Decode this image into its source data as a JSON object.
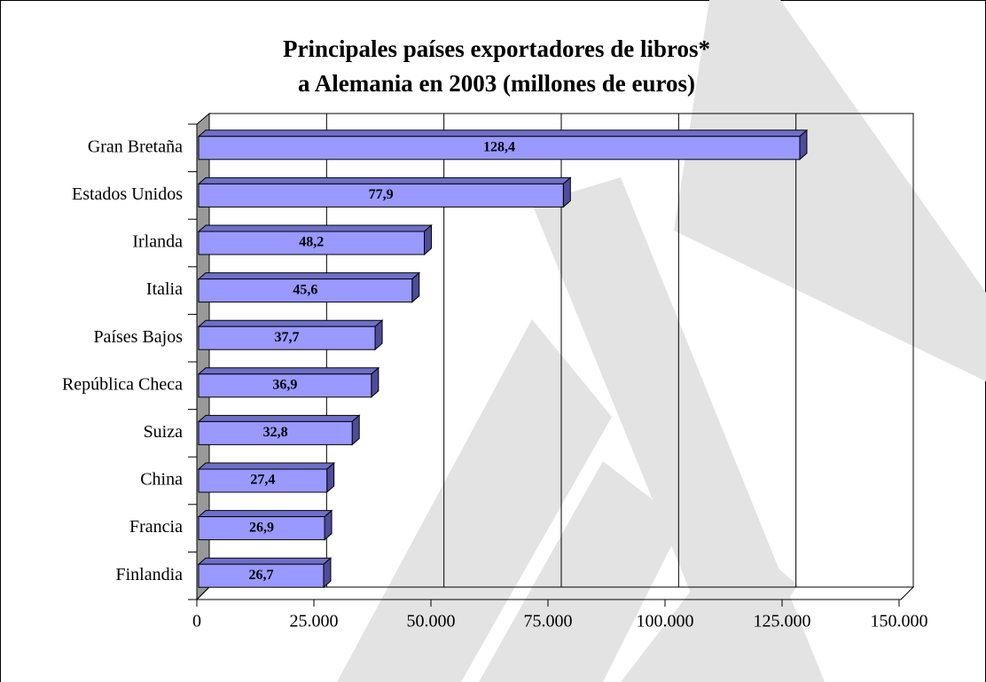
{
  "chart_data": {
    "type": "bar3d_horizontal",
    "title": [
      "Principales países exportadores de libros*",
      "a Alemania en 2003 (millones de euros)"
    ],
    "categories": [
      "Gran Bretaña",
      "Estados Unidos",
      "Irlanda",
      "Italia",
      "Países Bajos",
      "República Checa",
      "Suiza",
      "China",
      "Francia",
      "Finlandia"
    ],
    "values": [
      128400,
      77900,
      48200,
      45600,
      37700,
      36900,
      32800,
      27400,
      26900,
      26700
    ],
    "value_labels": [
      "128,4",
      "77,9",
      "48,2",
      "45,6",
      "37,7",
      "36,9",
      "32,8",
      "27,4",
      "26,9",
      "26,7"
    ],
    "color": "#9999ff",
    "xlim": [
      0,
      150000
    ],
    "xticks": [
      0,
      {
        "value": 25000,
        "label": "25.000"
      },
      {
        "value": 50000,
        "label": "50.000"
      },
      {
        "value": 75000,
        "label": "75.000"
      },
      {
        "value": 100000,
        "label": "100.000"
      },
      {
        "value": 125000,
        "label": "125.000"
      },
      {
        "value": 150000,
        "label": "150.000"
      }
    ],
    "grid": true
  }
}
